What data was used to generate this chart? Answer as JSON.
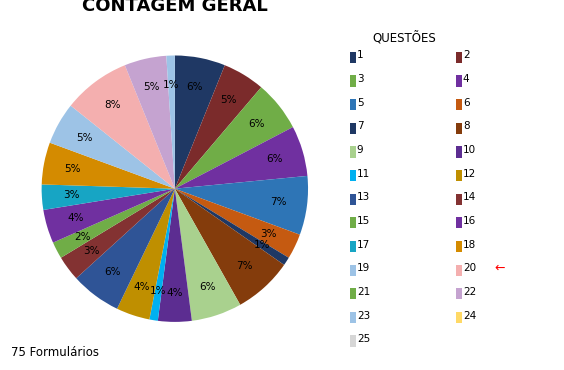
{
  "title": "CONTAGEM GERAL",
  "legend_title": "QUESTÕES",
  "footnote": "75 Formulários",
  "labels": [
    "1",
    "2",
    "3",
    "4",
    "5",
    "6",
    "7",
    "8",
    "9",
    "10",
    "11",
    "12",
    "13",
    "14",
    "15",
    "16",
    "17",
    "18",
    "19",
    "20",
    "21",
    "22",
    "23",
    "24",
    "25"
  ],
  "percentages": [
    6,
    5,
    6,
    6,
    7,
    3,
    1,
    7,
    6,
    4,
    1,
    4,
    6,
    3,
    2,
    4,
    3,
    5,
    5,
    8,
    0,
    5,
    1,
    0,
    0
  ],
  "colors": [
    "#1F3864",
    "#7B2C2C",
    "#70AD47",
    "#7030A0",
    "#2E75B6",
    "#C55A11",
    "#203864",
    "#843C0C",
    "#A9D18E",
    "#5C3D7A",
    "#00B0F0",
    "#BF8F00",
    "#2F5496",
    "#833232",
    "#92D050",
    "#6B3FA0",
    "#17A5C4",
    "#D48B00",
    "#9DC3E6",
    "#F4AFAF",
    "#A9D18E",
    "#C5A3D0",
    "#9DC3E6",
    "#FFD966",
    "#D0D0D0"
  ],
  "background_color": "#FFFFFF",
  "title_fontsize": 13,
  "start_angle": 90
}
